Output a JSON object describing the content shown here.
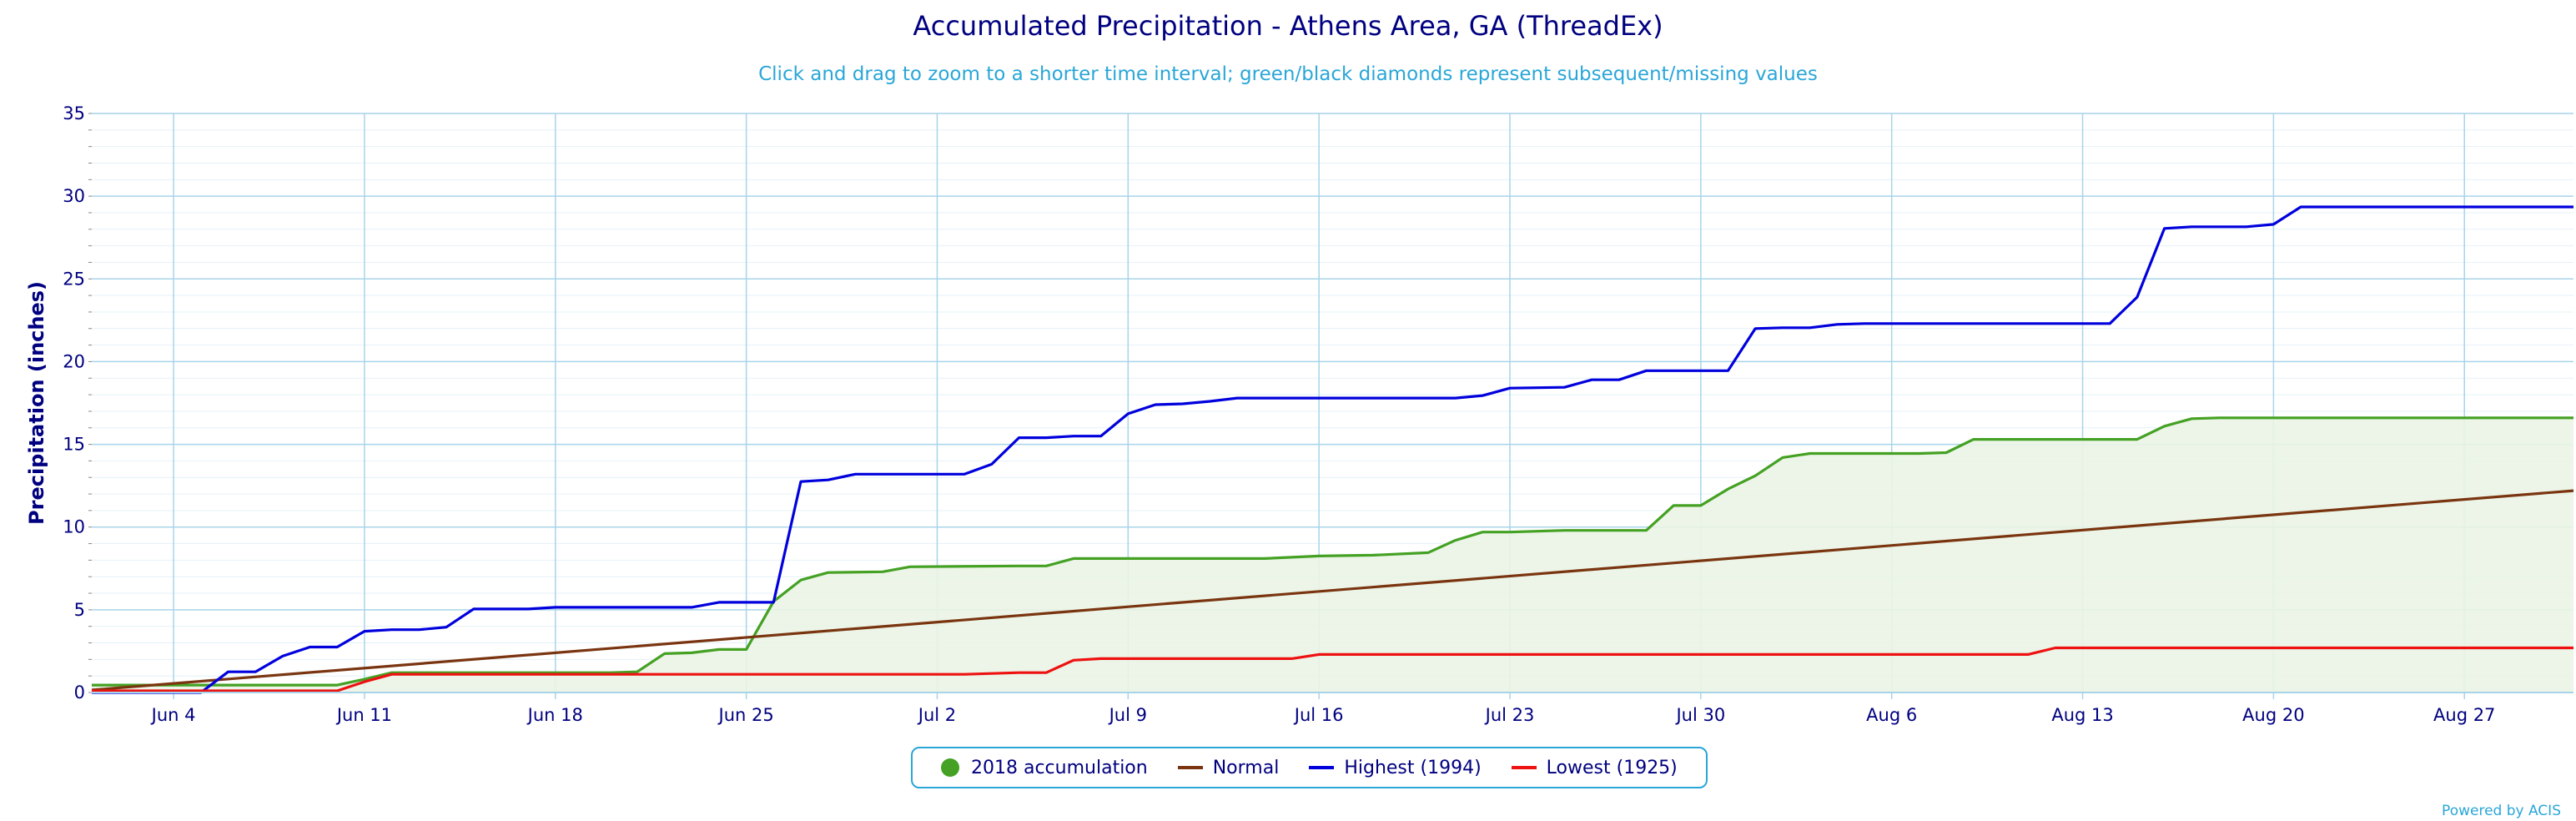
{
  "title": "Accumulated Precipitation - Athens Area, GA (ThreadEx)",
  "subtitle": "Click and drag to zoom to a shorter time interval; green/black diamonds represent subsequent/missing values",
  "credit": "Powered by ACIS",
  "colors": {
    "accum": "#44a123",
    "accum_fill": "#eaf4e4",
    "normal": "#7a3510",
    "highest": "#0000dd",
    "lowest": "#ee1111",
    "grid": "#a8d4ea",
    "axis_text": "#000080"
  },
  "legend": [
    {
      "label": "2018 accumulation",
      "symbol": "dot",
      "color": "#44a123"
    },
    {
      "label": "Normal",
      "symbol": "line",
      "color": "#7a3510"
    },
    {
      "label": "Highest (1994)",
      "symbol": "line",
      "color": "#0000dd"
    },
    {
      "label": "Lowest (1925)",
      "symbol": "line",
      "color": "#ee1111"
    }
  ],
  "chart_data": {
    "type": "line",
    "title": "Accumulated Precipitation - Athens Area, GA (ThreadEx)",
    "ylabel": "Precipitation (inches)",
    "xlabel": "",
    "ylim": [
      0,
      35
    ],
    "yticks": [
      0,
      5,
      10,
      15,
      20,
      25,
      30,
      35
    ],
    "xlim": [
      "2018-06-01",
      "2018-08-31"
    ],
    "xticks": [
      {
        "date": "2018-06-04",
        "label": "Jun 4"
      },
      {
        "date": "2018-06-11",
        "label": "Jun 11"
      },
      {
        "date": "2018-06-18",
        "label": "Jun 18"
      },
      {
        "date": "2018-06-25",
        "label": "Jun 25"
      },
      {
        "date": "2018-07-02",
        "label": "Jul 2"
      },
      {
        "date": "2018-07-09",
        "label": "Jul 9"
      },
      {
        "date": "2018-07-16",
        "label": "Jul 16"
      },
      {
        "date": "2018-07-23",
        "label": "Jul 23"
      },
      {
        "date": "2018-07-30",
        "label": "Jul 30"
      },
      {
        "date": "2018-08-06",
        "label": "Aug 6"
      },
      {
        "date": "2018-08-13",
        "label": "Aug 13"
      },
      {
        "date": "2018-08-20",
        "label": "Aug 20"
      },
      {
        "date": "2018-08-27",
        "label": "Aug 27"
      }
    ],
    "grid": true,
    "legend_position": "bottom-center",
    "series": [
      {
        "name": "2018 accumulation",
        "style": "area",
        "color": "#44a123",
        "points": [
          [
            "2018-06-01",
            0.45
          ],
          [
            "2018-06-10",
            0.45
          ],
          [
            "2018-06-11",
            0.8
          ],
          [
            "2018-06-12",
            1.2
          ],
          [
            "2018-06-20",
            1.2
          ],
          [
            "2018-06-21",
            1.25
          ],
          [
            "2018-06-22",
            2.35
          ],
          [
            "2018-06-23",
            2.4
          ],
          [
            "2018-06-24",
            2.6
          ],
          [
            "2018-06-25",
            2.6
          ],
          [
            "2018-06-26",
            5.5
          ],
          [
            "2018-06-27",
            6.8
          ],
          [
            "2018-06-28",
            7.25
          ],
          [
            "2018-06-30",
            7.3
          ],
          [
            "2018-07-01",
            7.6
          ],
          [
            "2018-07-05",
            7.65
          ],
          [
            "2018-07-06",
            7.65
          ],
          [
            "2018-07-07",
            8.1
          ],
          [
            "2018-07-14",
            8.1
          ],
          [
            "2018-07-16",
            8.25
          ],
          [
            "2018-07-18",
            8.3
          ],
          [
            "2018-07-20",
            8.45
          ],
          [
            "2018-07-21",
            9.2
          ],
          [
            "2018-07-22",
            9.7
          ],
          [
            "2018-07-23",
            9.7
          ],
          [
            "2018-07-25",
            9.8
          ],
          [
            "2018-07-28",
            9.8
          ],
          [
            "2018-07-29",
            11.3
          ],
          [
            "2018-07-30",
            11.3
          ],
          [
            "2018-07-31",
            12.3
          ],
          [
            "2018-08-01",
            13.1
          ],
          [
            "2018-08-02",
            14.2
          ],
          [
            "2018-08-03",
            14.45
          ],
          [
            "2018-08-07",
            14.45
          ],
          [
            "2018-08-08",
            14.5
          ],
          [
            "2018-08-09",
            15.3
          ],
          [
            "2018-08-15",
            15.3
          ],
          [
            "2018-08-16",
            16.1
          ],
          [
            "2018-08-17",
            16.55
          ],
          [
            "2018-08-18",
            16.6
          ],
          [
            "2018-08-31",
            16.6
          ]
        ]
      },
      {
        "name": "Normal",
        "style": "line",
        "color": "#7a3510",
        "points": [
          [
            "2018-06-01",
            0.15
          ],
          [
            "2018-08-31",
            12.2
          ]
        ]
      },
      {
        "name": "Highest (1994)",
        "style": "line",
        "color": "#0000dd",
        "points": [
          [
            "2018-06-01",
            0.0
          ],
          [
            "2018-06-05",
            0.0
          ],
          [
            "2018-06-06",
            1.25
          ],
          [
            "2018-06-07",
            1.25
          ],
          [
            "2018-06-08",
            2.2
          ],
          [
            "2018-06-09",
            2.75
          ],
          [
            "2018-06-10",
            2.75
          ],
          [
            "2018-06-11",
            3.7
          ],
          [
            "2018-06-12",
            3.8
          ],
          [
            "2018-06-13",
            3.8
          ],
          [
            "2018-06-14",
            3.95
          ],
          [
            "2018-06-15",
            5.05
          ],
          [
            "2018-06-17",
            5.05
          ],
          [
            "2018-06-18",
            5.15
          ],
          [
            "2018-06-23",
            5.15
          ],
          [
            "2018-06-24",
            5.45
          ],
          [
            "2018-06-26",
            5.45
          ],
          [
            "2018-06-27",
            12.75
          ],
          [
            "2018-06-28",
            12.85
          ],
          [
            "2018-06-29",
            13.2
          ],
          [
            "2018-07-03",
            13.2
          ],
          [
            "2018-07-04",
            13.8
          ],
          [
            "2018-07-05",
            15.4
          ],
          [
            "2018-07-06",
            15.4
          ],
          [
            "2018-07-07",
            15.5
          ],
          [
            "2018-07-08",
            15.5
          ],
          [
            "2018-07-09",
            16.85
          ],
          [
            "2018-07-10",
            17.4
          ],
          [
            "2018-07-11",
            17.45
          ],
          [
            "2018-07-12",
            17.6
          ],
          [
            "2018-07-13",
            17.8
          ],
          [
            "2018-07-21",
            17.8
          ],
          [
            "2018-07-22",
            17.95
          ],
          [
            "2018-07-23",
            18.4
          ],
          [
            "2018-07-25",
            18.45
          ],
          [
            "2018-07-26",
            18.9
          ],
          [
            "2018-07-27",
            18.9
          ],
          [
            "2018-07-28",
            19.45
          ],
          [
            "2018-07-31",
            19.45
          ],
          [
            "2018-08-01",
            22.0
          ],
          [
            "2018-08-02",
            22.05
          ],
          [
            "2018-08-03",
            22.05
          ],
          [
            "2018-08-04",
            22.25
          ],
          [
            "2018-08-05",
            22.3
          ],
          [
            "2018-08-14",
            22.3
          ],
          [
            "2018-08-15",
            23.9
          ],
          [
            "2018-08-16",
            28.05
          ],
          [
            "2018-08-17",
            28.15
          ],
          [
            "2018-08-19",
            28.15
          ],
          [
            "2018-08-20",
            28.3
          ],
          [
            "2018-08-21",
            29.35
          ],
          [
            "2018-08-31",
            29.35
          ]
        ]
      },
      {
        "name": "Lowest (1925)",
        "style": "line",
        "color": "#ee1111",
        "points": [
          [
            "2018-06-01",
            0.1
          ],
          [
            "2018-06-10",
            0.1
          ],
          [
            "2018-06-11",
            0.65
          ],
          [
            "2018-06-12",
            1.1
          ],
          [
            "2018-07-03",
            1.1
          ],
          [
            "2018-07-04",
            1.15
          ],
          [
            "2018-07-05",
            1.2
          ],
          [
            "2018-07-06",
            1.2
          ],
          [
            "2018-07-07",
            1.95
          ],
          [
            "2018-07-08",
            2.05
          ],
          [
            "2018-07-15",
            2.05
          ],
          [
            "2018-07-16",
            2.3
          ],
          [
            "2018-08-11",
            2.3
          ],
          [
            "2018-08-12",
            2.7
          ],
          [
            "2018-08-31",
            2.7
          ]
        ]
      }
    ]
  }
}
